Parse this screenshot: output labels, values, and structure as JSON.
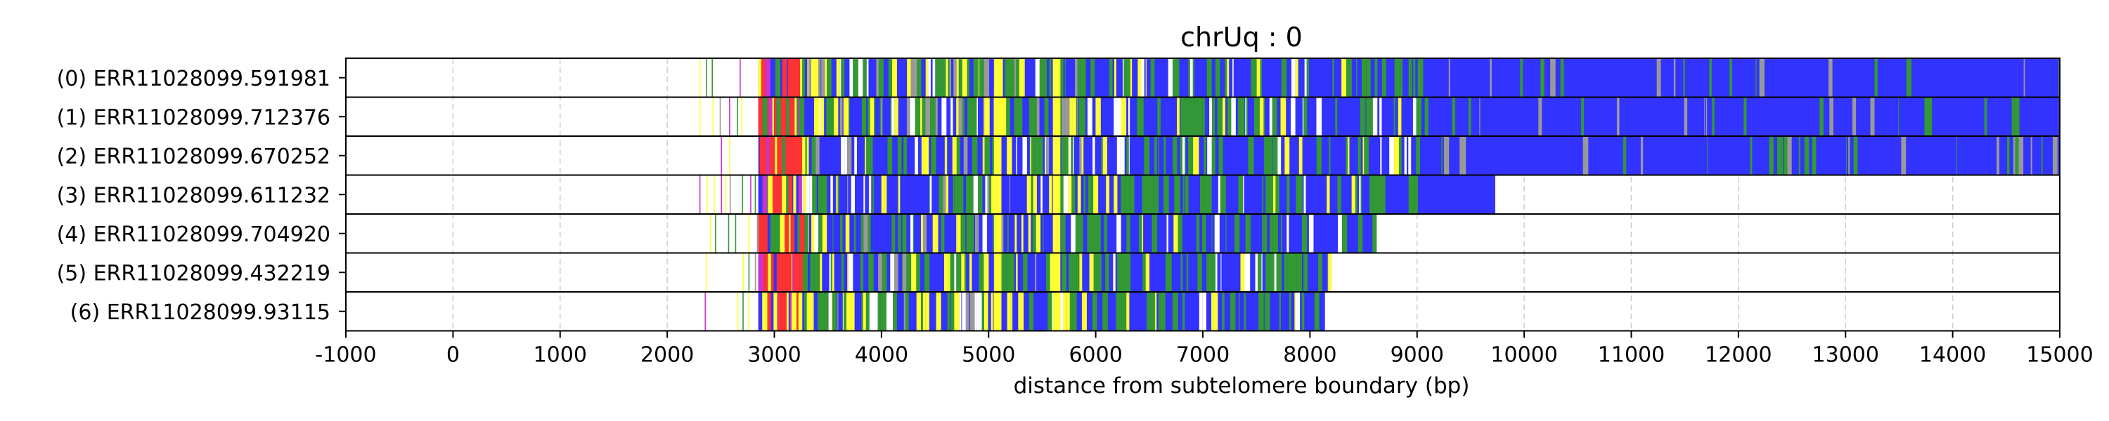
{
  "chart_data": {
    "type": "read-track",
    "title": "chrUq : 0",
    "xlabel": "distance from subtelomere boundary (bp)",
    "ylabel": "",
    "xlim": [
      -1000,
      15000
    ],
    "xticks": [
      -1000,
      0,
      1000,
      2000,
      3000,
      4000,
      5000,
      6000,
      7000,
      8000,
      9000,
      10000,
      11000,
      12000,
      13000,
      14000,
      15000
    ],
    "grid": "vertical dashed",
    "colors": {
      "blue": "#3333ff",
      "green": "#339933",
      "yellow": "#ffff33",
      "red": "#ff3333",
      "magenta": "#cc33cc",
      "gray": "#999999",
      "white": "#ffffff"
    },
    "reads": [
      {
        "label": "(0) ERR11028099.591981",
        "start": 2300,
        "end": 15000
      },
      {
        "label": "(1) ERR11028099.712376",
        "start": 2300,
        "end": 15000
      },
      {
        "label": "(2) ERR11028099.670252",
        "start": 2450,
        "end": 15000
      },
      {
        "label": "(3) ERR11028099.611232",
        "start": 2300,
        "end": 9730
      },
      {
        "label": "(4) ERR11028099.704920",
        "start": 2400,
        "end": 8620
      },
      {
        "label": "(5) ERR11028099.432219",
        "start": 2300,
        "end": 8200
      },
      {
        "label": "(6) ERR11028099.93115",
        "start": 2350,
        "end": 8140
      }
    ]
  }
}
